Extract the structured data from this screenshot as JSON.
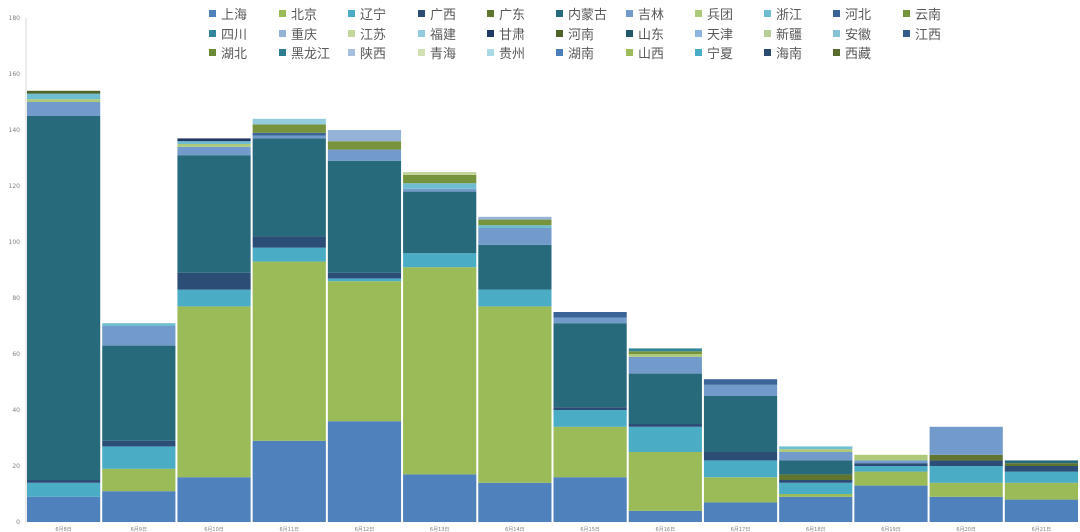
{
  "chart_data": {
    "type": "bar",
    "stacked": true,
    "categories": [
      "6月8日",
      "6月9日",
      "6月10日",
      "6月11日",
      "6月12日",
      "6月13日",
      "6月14日",
      "6月15日",
      "6月16日",
      "6月17日",
      "6月18日",
      "6月19日",
      "6月20日",
      "6月21日"
    ],
    "ylim": [
      0,
      180
    ],
    "yticks": [
      0,
      20,
      40,
      60,
      80,
      100,
      120,
      140,
      160,
      180
    ],
    "legend_position": "top",
    "grid": false,
    "series": [
      {
        "name": "上海",
        "color": "#4f81bd",
        "values": [
          9,
          11,
          16,
          29,
          36,
          17,
          14,
          16,
          4,
          7,
          9,
          13,
          9,
          8
        ]
      },
      {
        "name": "北京",
        "color": "#9bbb59",
        "values": [
          0,
          8,
          61,
          64,
          50,
          74,
          63,
          18,
          21,
          9,
          1,
          5,
          5,
          6
        ]
      },
      {
        "name": "辽宁",
        "color": "#4bacc6",
        "values": [
          5,
          8,
          6,
          5,
          1,
          5,
          6,
          6,
          9,
          6,
          4,
          2,
          6,
          4
        ]
      },
      {
        "name": "广西",
        "color": "#2c4d75",
        "values": [
          1,
          2,
          6,
          4,
          2,
          0,
          0,
          1,
          1,
          3,
          1,
          1,
          2,
          2
        ]
      },
      {
        "name": "广东",
        "color": "#5f7530",
        "values": [
          0,
          0,
          0,
          0,
          0,
          0,
          0,
          0,
          0,
          0,
          2,
          0,
          2,
          1
        ]
      },
      {
        "name": "内蒙古",
        "color": "#276a7c",
        "values": [
          130,
          34,
          42,
          35,
          40,
          22,
          16,
          30,
          18,
          20,
          5,
          0,
          0,
          1
        ]
      },
      {
        "name": "吉林",
        "color": "#729aca",
        "values": [
          5,
          7,
          3,
          1,
          4,
          1,
          6,
          2,
          6,
          4,
          3,
          1,
          10,
          0
        ]
      },
      {
        "name": "兵团",
        "color": "#afc97a",
        "values": [
          1,
          0,
          1,
          0,
          0,
          0,
          0,
          0,
          1,
          0,
          1,
          2,
          0,
          0
        ]
      },
      {
        "name": "浙江",
        "color": "#6fbdd1",
        "values": [
          2,
          1,
          1,
          0,
          0,
          2,
          1,
          0,
          0,
          0,
          1,
          0,
          0,
          0
        ]
      },
      {
        "name": "河北",
        "color": "#3a6596",
        "values": [
          0,
          0,
          0,
          1,
          0,
          0,
          0,
          2,
          0,
          2,
          0,
          0,
          0,
          0
        ]
      },
      {
        "name": "云南",
        "color": "#77933c",
        "values": [
          0,
          0,
          0,
          3,
          3,
          3,
          2,
          0,
          1,
          0,
          0,
          0,
          0,
          0
        ]
      },
      {
        "name": "四川",
        "color": "#31859c",
        "values": [
          0,
          0,
          0,
          0,
          0,
          0,
          0,
          0,
          1,
          0,
          0,
          0,
          0,
          0
        ]
      },
      {
        "name": "重庆",
        "color": "#95b3d7",
        "values": [
          0,
          0,
          0,
          0,
          4,
          0,
          1,
          0,
          0,
          0,
          0,
          0,
          0,
          0
        ]
      },
      {
        "name": "江苏",
        "color": "#c3d69b",
        "values": [
          0,
          0,
          0,
          0,
          0,
          1,
          0,
          0,
          0,
          0,
          0,
          0,
          0,
          0
        ]
      },
      {
        "name": "福建",
        "color": "#93cddd",
        "values": [
          0,
          0,
          0,
          2,
          0,
          0,
          0,
          0,
          0,
          0,
          0,
          0,
          0,
          0
        ]
      },
      {
        "name": "甘肃",
        "color": "#1f3864",
        "values": [
          0,
          0,
          1,
          0,
          0,
          0,
          0,
          0,
          0,
          0,
          0,
          0,
          0,
          0
        ]
      },
      {
        "name": "河南",
        "color": "#4f6228",
        "values": [
          1,
          0,
          0,
          0,
          0,
          0,
          0,
          0,
          0,
          0,
          0,
          0,
          0,
          0
        ]
      },
      {
        "name": "山东",
        "color": "#215968",
        "values": [
          0,
          0,
          0,
          0,
          0,
          0,
          0,
          0,
          0,
          0,
          0,
          0,
          0,
          0
        ]
      },
      {
        "name": "天津",
        "color": "#8db3e2",
        "values": [
          0,
          0,
          0,
          0,
          0,
          0,
          0,
          0,
          0,
          0,
          0,
          0,
          0,
          0
        ]
      },
      {
        "name": "新疆",
        "color": "#b9cd96",
        "values": [
          0,
          0,
          0,
          0,
          0,
          0,
          0,
          0,
          0,
          0,
          0,
          0,
          0,
          0
        ]
      },
      {
        "name": "安徽",
        "color": "#86c3d4",
        "values": [
          0,
          0,
          0,
          0,
          0,
          0,
          0,
          0,
          0,
          0,
          0,
          0,
          0,
          0
        ]
      },
      {
        "name": "江西",
        "color": "#335b8e",
        "values": [
          0,
          0,
          0,
          0,
          0,
          0,
          0,
          0,
          0,
          0,
          0,
          0,
          0,
          0
        ]
      },
      {
        "name": "湖北",
        "color": "#6b8a36",
        "values": [
          0,
          0,
          0,
          0,
          0,
          0,
          0,
          0,
          0,
          0,
          0,
          0,
          0,
          0
        ]
      },
      {
        "name": "黑龙江",
        "color": "#2c7b8f",
        "values": [
          0,
          0,
          0,
          0,
          0,
          0,
          0,
          0,
          0,
          0,
          0,
          0,
          0,
          0
        ]
      },
      {
        "name": "陕西",
        "color": "#a6bfdf",
        "values": [
          0,
          0,
          0,
          0,
          0,
          0,
          0,
          0,
          0,
          0,
          0,
          0,
          0,
          0
        ]
      },
      {
        "name": "青海",
        "color": "#d0e0b0",
        "values": [
          0,
          0,
          0,
          0,
          0,
          0,
          0,
          0,
          0,
          0,
          0,
          0,
          0,
          0
        ]
      },
      {
        "name": "贵州",
        "color": "#a9dae5",
        "values": [
          0,
          0,
          0,
          0,
          0,
          0,
          0,
          0,
          0,
          0,
          0,
          0,
          0,
          0
        ]
      },
      {
        "name": "湖南",
        "color": "#4a7ebb",
        "values": [
          0,
          0,
          0,
          0,
          0,
          0,
          0,
          0,
          0,
          0,
          0,
          0,
          0,
          0
        ]
      },
      {
        "name": "山西",
        "color": "#9dbb5a",
        "values": [
          0,
          0,
          0,
          0,
          0,
          0,
          0,
          0,
          0,
          0,
          0,
          0,
          0,
          0
        ]
      },
      {
        "name": "宁夏",
        "color": "#48aec8",
        "values": [
          0,
          0,
          0,
          0,
          0,
          0,
          0,
          0,
          0,
          0,
          0,
          0,
          0,
          0
        ]
      },
      {
        "name": "海南",
        "color": "#2a4a72",
        "values": [
          0,
          0,
          0,
          0,
          0,
          0,
          0,
          0,
          0,
          0,
          0,
          0,
          0,
          0
        ]
      },
      {
        "name": "西藏",
        "color": "#566b2c",
        "values": [
          0,
          0,
          0,
          0,
          0,
          0,
          0,
          0,
          0,
          0,
          0,
          0,
          0,
          0
        ]
      }
    ]
  }
}
